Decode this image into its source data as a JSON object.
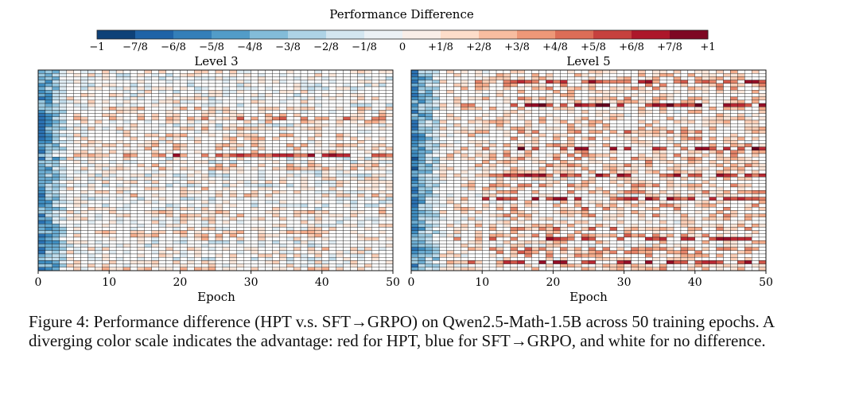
{
  "chart_data": {
    "type": "heatmap",
    "title": "Performance Difference",
    "colorbar": {
      "tick_labels": [
        "−1",
        "−7/8",
        "−6/8",
        "−5/8",
        "−4/8",
        "−3/8",
        "−2/8",
        "−1/8",
        "0",
        "+1/8",
        "+2/8",
        "+3/8",
        "+4/8",
        "+5/8",
        "+6/8",
        "+7/8",
        "+1"
      ],
      "range": [
        -1,
        1
      ],
      "levels": 16,
      "negative_color": "#053061",
      "zero_color": "#ffffff",
      "positive_color": "#67001f"
    },
    "panels": [
      {
        "title": "Level 3",
        "xlabel": "Epoch",
        "x_range": [
          0,
          50
        ],
        "x_ticks": [
          0,
          10,
          20,
          30,
          40,
          50
        ],
        "n_rows": 60,
        "n_epochs": 50
      },
      {
        "title": "Level 5",
        "xlabel": "Epoch",
        "x_range": [
          0,
          50
        ],
        "x_ticks": [
          0,
          10,
          20,
          30,
          40,
          50
        ],
        "n_rows": 60,
        "n_epochs": 50
      }
    ]
  },
  "caption": "Figure 4: Performance difference (HPT v.s. SFT→GRPO) on Qwen2.5-Math-1.5B across 50 training epochs. A diverging color scale indicates the advantage: red for HPT, blue for SFT→GRPO, and white for no difference."
}
